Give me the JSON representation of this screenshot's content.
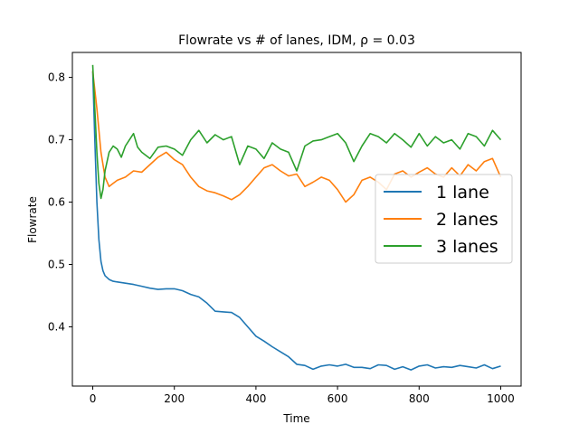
{
  "chart_data": {
    "type": "line",
    "title": "Flowrate vs # of lanes, IDM, ρ = 0.03",
    "xlabel": "Time",
    "ylabel": "Flowrate",
    "xlim": [
      -50,
      1050
    ],
    "ylim": [
      0.305,
      0.84
    ],
    "xticks": [
      0,
      200,
      400,
      600,
      800,
      1000
    ],
    "yticks": [
      0.4,
      0.5,
      0.6,
      0.7,
      0.8
    ],
    "xtick_labels": [
      "0",
      "200",
      "400",
      "600",
      "800",
      "1000"
    ],
    "ytick_labels": [
      "0.4",
      "0.5",
      "0.6",
      "0.7",
      "0.8"
    ],
    "grid": false,
    "legend_position": "center-right",
    "series": [
      {
        "name": "1 lane",
        "color": "#1f77b4",
        "x": [
          0,
          5,
          10,
          15,
          20,
          25,
          30,
          40,
          50,
          60,
          80,
          100,
          120,
          140,
          160,
          180,
          200,
          220,
          240,
          260,
          280,
          300,
          320,
          340,
          360,
          380,
          400,
          420,
          440,
          460,
          480,
          500,
          520,
          540,
          560,
          580,
          600,
          620,
          640,
          660,
          680,
          700,
          720,
          740,
          760,
          780,
          800,
          820,
          840,
          860,
          880,
          900,
          920,
          940,
          960,
          980,
          1000
        ],
        "y": [
          0.81,
          0.7,
          0.6,
          0.54,
          0.505,
          0.49,
          0.482,
          0.476,
          0.473,
          0.472,
          0.47,
          0.468,
          0.465,
          0.462,
          0.46,
          0.461,
          0.461,
          0.458,
          0.452,
          0.448,
          0.438,
          0.425,
          0.424,
          0.423,
          0.415,
          0.4,
          0.385,
          0.377,
          0.368,
          0.36,
          0.352,
          0.34,
          0.338,
          0.332,
          0.337,
          0.339,
          0.337,
          0.34,
          0.335,
          0.335,
          0.333,
          0.339,
          0.338,
          0.332,
          0.336,
          0.331,
          0.337,
          0.339,
          0.334,
          0.336,
          0.335,
          0.338,
          0.336,
          0.334,
          0.339,
          0.333,
          0.337
        ]
      },
      {
        "name": "2 lanes",
        "color": "#ff7f0e",
        "x": [
          0,
          10,
          20,
          30,
          40,
          50,
          60,
          80,
          100,
          120,
          140,
          160,
          180,
          200,
          220,
          240,
          260,
          280,
          300,
          320,
          340,
          360,
          380,
          400,
          420,
          440,
          460,
          480,
          500,
          520,
          540,
          560,
          580,
          600,
          620,
          640,
          660,
          680,
          700,
          720,
          740,
          760,
          780,
          800,
          820,
          840,
          860,
          880,
          900,
          920,
          940,
          960,
          980,
          1000
        ],
        "y": [
          0.81,
          0.75,
          0.68,
          0.64,
          0.625,
          0.63,
          0.635,
          0.64,
          0.65,
          0.648,
          0.66,
          0.672,
          0.68,
          0.668,
          0.66,
          0.64,
          0.625,
          0.618,
          0.615,
          0.61,
          0.604,
          0.612,
          0.625,
          0.64,
          0.655,
          0.66,
          0.65,
          0.642,
          0.645,
          0.625,
          0.632,
          0.64,
          0.635,
          0.62,
          0.6,
          0.612,
          0.635,
          0.64,
          0.632,
          0.62,
          0.645,
          0.65,
          0.64,
          0.648,
          0.655,
          0.645,
          0.64,
          0.655,
          0.642,
          0.66,
          0.65,
          0.665,
          0.67,
          0.64
        ]
      },
      {
        "name": "3 lanes",
        "color": "#2ca02c",
        "x": [
          0,
          5,
          10,
          15,
          20,
          25,
          30,
          40,
          50,
          60,
          70,
          80,
          90,
          100,
          110,
          120,
          140,
          160,
          180,
          200,
          220,
          240,
          260,
          280,
          300,
          320,
          340,
          360,
          380,
          400,
          420,
          440,
          460,
          480,
          500,
          520,
          540,
          560,
          580,
          600,
          620,
          640,
          660,
          680,
          700,
          720,
          740,
          760,
          780,
          800,
          820,
          840,
          860,
          880,
          900,
          920,
          940,
          960,
          980,
          1000
        ],
        "y": [
          0.82,
          0.75,
          0.68,
          0.63,
          0.606,
          0.62,
          0.65,
          0.68,
          0.69,
          0.685,
          0.672,
          0.69,
          0.7,
          0.71,
          0.688,
          0.68,
          0.67,
          0.688,
          0.69,
          0.685,
          0.675,
          0.7,
          0.715,
          0.695,
          0.708,
          0.7,
          0.705,
          0.66,
          0.69,
          0.685,
          0.67,
          0.695,
          0.685,
          0.68,
          0.65,
          0.69,
          0.698,
          0.7,
          0.705,
          0.71,
          0.695,
          0.665,
          0.69,
          0.71,
          0.705,
          0.695,
          0.71,
          0.7,
          0.688,
          0.71,
          0.69,
          0.705,
          0.695,
          0.7,
          0.685,
          0.71,
          0.705,
          0.69,
          0.715,
          0.7
        ]
      }
    ]
  }
}
